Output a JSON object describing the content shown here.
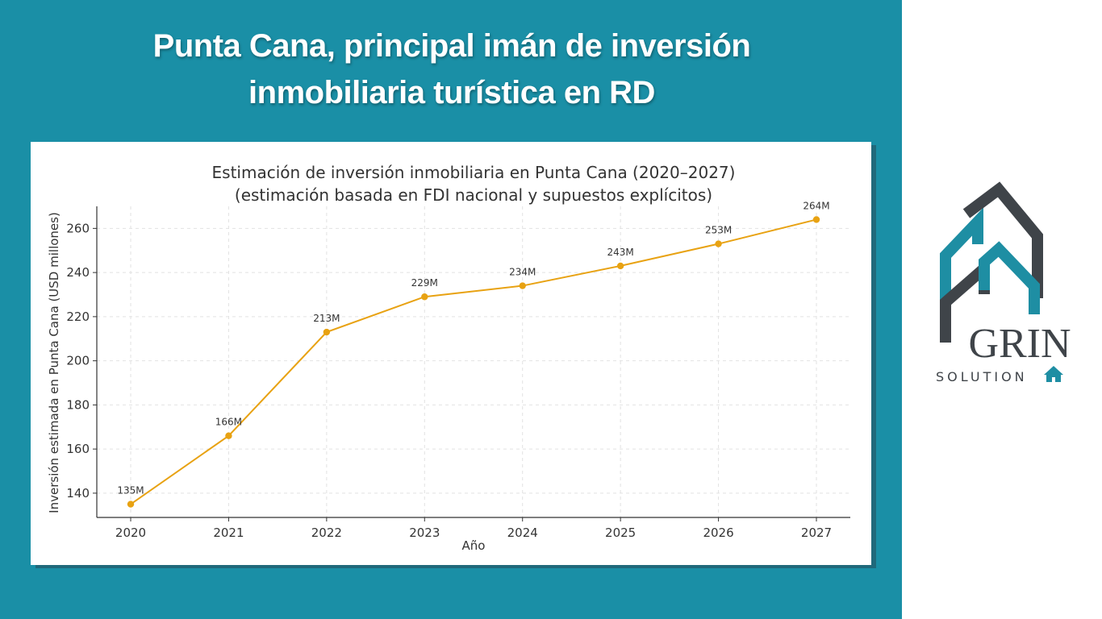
{
  "headline": {
    "line1": "Punta Cana, principal imán de inversión",
    "line2": "inmobiliaria turística en RD"
  },
  "chart_data": {
    "type": "line",
    "title": "Estimación de inversión inmobiliaria en Punta Cana (2020–2027)",
    "subtitle": "(estimación basada en FDI nacional y supuestos explícitos)",
    "xlabel": "Año",
    "ylabel": "Inversión estimada en Punta Cana (USD millones)",
    "x": [
      2020,
      2021,
      2022,
      2023,
      2024,
      2025,
      2026,
      2027
    ],
    "series": [
      {
        "values": [
          135,
          166,
          213,
          229,
          234,
          243,
          253,
          264
        ],
        "labels": [
          "135M",
          "166M",
          "213M",
          "229M",
          "234M",
          "243M",
          "253M",
          "264M"
        ],
        "color": "#e8a212"
      }
    ],
    "yticks": [
      140,
      160,
      180,
      200,
      220,
      240,
      260
    ],
    "ylim": [
      129,
      270
    ],
    "grid": true,
    "grid_style": "dashed"
  },
  "logo": {
    "name": "GRIN",
    "tagline": "SOLUTION",
    "colors": {
      "teal": "#1e8ea3",
      "dark": "#3f4449"
    }
  },
  "colors": {
    "background": "#1a8fa6",
    "line": "#e8a212"
  }
}
